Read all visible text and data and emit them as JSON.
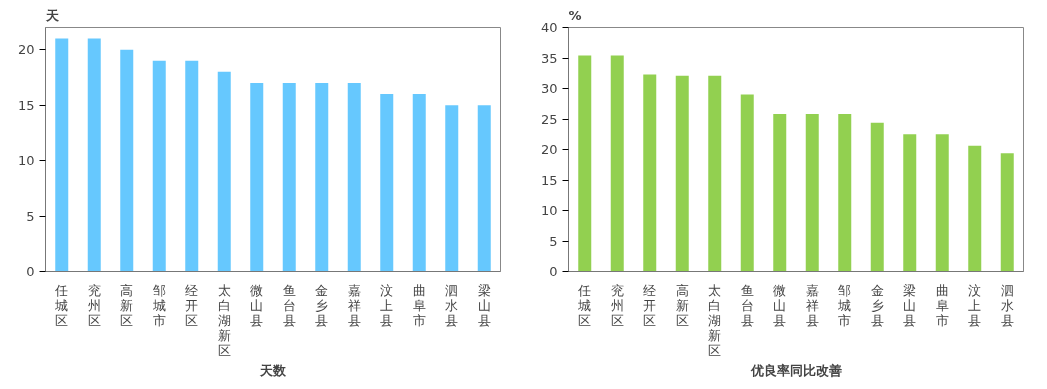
{
  "chart_data": [
    {
      "type": "bar",
      "xlabel": "天数",
      "ylabel": "天",
      "categories": [
        "任城区",
        "兖州区",
        "高新区",
        "邹城市",
        "经开区",
        "太白湖新区",
        "微山县",
        "鱼台县",
        "金乡县",
        "嘉祥县",
        "汶上县",
        "曲阜市",
        "泗水县",
        "梁山县"
      ],
      "values": [
        21,
        21,
        20,
        19,
        19,
        18,
        17,
        17,
        17,
        17,
        16,
        16,
        15,
        15
      ],
      "color": "#66c8fe",
      "ylim": [
        0,
        22
      ],
      "yticks": [
        0,
        5,
        10,
        15,
        20
      ],
      "grid": false
    },
    {
      "type": "bar",
      "xlabel": "优良率同比改善",
      "ylabel": "%",
      "categories": [
        "任城区",
        "兖州区",
        "经开区",
        "高新区",
        "太白湖新区",
        "鱼台县",
        "微山县",
        "嘉祥县",
        "邹城市",
        "金乡县",
        "梁山县",
        "曲阜市",
        "汶上县",
        "泗水县"
      ],
      "values": [
        35.4,
        35.4,
        32.3,
        32.1,
        32.1,
        29,
        25.8,
        25.8,
        25.8,
        24.4,
        22.5,
        22.5,
        20.6,
        19.4
      ],
      "color": "#92d050",
      "ylim": [
        0,
        40
      ],
      "yticks": [
        0,
        5,
        10,
        15,
        20,
        25,
        30,
        35,
        40
      ],
      "grid": false
    }
  ]
}
